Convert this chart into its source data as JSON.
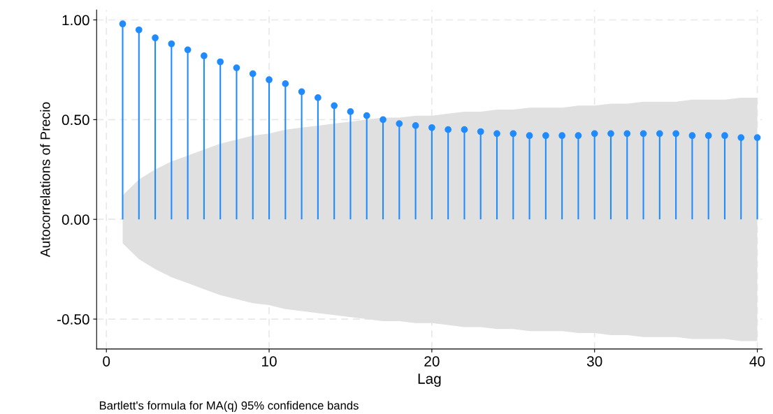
{
  "chart_data": {
    "type": "lollipop",
    "xlabel": "Lag",
    "ylabel": "Autocorrelations of Precio",
    "x": [
      1,
      2,
      3,
      4,
      5,
      6,
      7,
      8,
      9,
      10,
      11,
      12,
      13,
      14,
      15,
      16,
      17,
      18,
      19,
      20,
      21,
      22,
      23,
      24,
      25,
      26,
      27,
      28,
      29,
      30,
      31,
      32,
      33,
      34,
      35,
      36,
      37,
      38,
      39,
      40
    ],
    "series": [
      {
        "color": "#1f8bff",
        "values": [
          0.98,
          0.95,
          0.91,
          0.88,
          0.85,
          0.82,
          0.79,
          0.76,
          0.73,
          0.7,
          0.68,
          0.64,
          0.61,
          0.57,
          0.54,
          0.52,
          0.5,
          0.48,
          0.47,
          0.46,
          0.45,
          0.45,
          0.44,
          0.43,
          0.43,
          0.42,
          0.42,
          0.42,
          0.42,
          0.43,
          0.43,
          0.43,
          0.43,
          0.43,
          0.43,
          0.42,
          0.42,
          0.42,
          0.41,
          0.41
        ],
        "upper": [
          0.12,
          0.2,
          0.25,
          0.29,
          0.32,
          0.35,
          0.38,
          0.4,
          0.42,
          0.43,
          0.45,
          0.46,
          0.47,
          0.48,
          0.49,
          0.5,
          0.51,
          0.51,
          0.52,
          0.52,
          0.53,
          0.54,
          0.54,
          0.55,
          0.55,
          0.56,
          0.56,
          0.56,
          0.57,
          0.57,
          0.58,
          0.58,
          0.59,
          0.59,
          0.59,
          0.6,
          0.6,
          0.6,
          0.61,
          0.61
        ],
        "lower": [
          -0.12,
          -0.2,
          -0.25,
          -0.29,
          -0.32,
          -0.35,
          -0.38,
          -0.4,
          -0.42,
          -0.43,
          -0.45,
          -0.46,
          -0.47,
          -0.48,
          -0.49,
          -0.5,
          -0.51,
          -0.51,
          -0.52,
          -0.52,
          -0.53,
          -0.54,
          -0.54,
          -0.55,
          -0.55,
          -0.56,
          -0.56,
          -0.56,
          -0.57,
          -0.57,
          -0.58,
          -0.58,
          -0.59,
          -0.59,
          -0.59,
          -0.6,
          -0.6,
          -0.6,
          -0.61,
          -0.61
        ]
      }
    ],
    "xlim": [
      -0.6,
      40.3
    ],
    "xticks": [
      0,
      10,
      20,
      30,
      40
    ],
    "ylim": [
      -0.65,
      1.05
    ],
    "yticks": [
      {
        "value": -0.5,
        "label": "-0.50"
      },
      {
        "value": 0,
        "label": "0.00"
      },
      {
        "value": 0.5,
        "label": "0.50"
      },
      {
        "value": 1,
        "label": "1.00"
      }
    ],
    "grid": true,
    "marker": "circle",
    "annotations": [
      "Bartlett's formula for MA(q) 95% confidence bands"
    ]
  }
}
